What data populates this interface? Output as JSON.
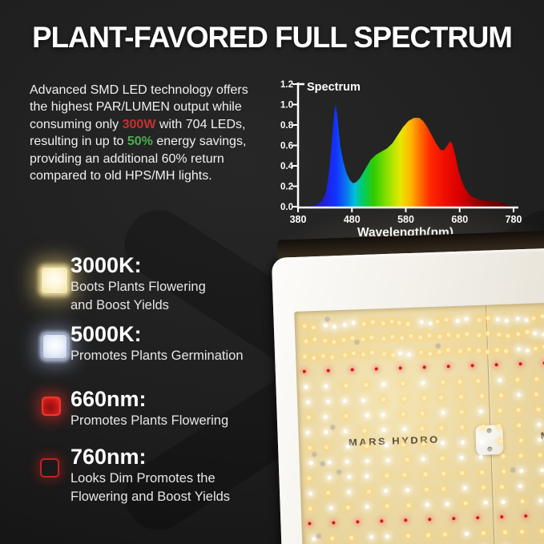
{
  "title": "PLANT-FAVORED FULL SPECTRUM",
  "description": {
    "lines": [
      {
        "pre": "Advanced SMD LED technology offers",
        "hl": "",
        "post": ""
      },
      {
        "pre": "the highest PAR/LUMEN output while",
        "hl": "",
        "post": ""
      },
      {
        "pre": "consuming only ",
        "hl": "300W",
        "post": " with 704 LEDs,"
      },
      {
        "pre": "resulting in up to ",
        "hl": "50%",
        "post": " energy savings,"
      },
      {
        "pre": "providing an additional 60% return",
        "hl": "",
        "post": ""
      },
      {
        "pre": "compared to old HPS/MH lights.",
        "hl": "",
        "post": ""
      }
    ],
    "accent_red": "#c93030",
    "accent_green": "#4caf50"
  },
  "chart_data": {
    "type": "area",
    "title": "Spectrum",
    "xlabel": "Wavelength(nm)",
    "ylabel": "",
    "xlim": [
      380,
      780
    ],
    "ylim": [
      0,
      1.2
    ],
    "x_tick_labels": [
      "380",
      "480",
      "580",
      "680",
      "780"
    ],
    "y_tick_labels": [
      "0.0",
      "0.2",
      "0.4",
      "0.6",
      "0.8",
      "1.0",
      "1.2"
    ],
    "grid": false,
    "points": [
      [
        380,
        0
      ],
      [
        395,
        0
      ],
      [
        405,
        0.01
      ],
      [
        415,
        0.02
      ],
      [
        425,
        0.06
      ],
      [
        432,
        0.15
      ],
      [
        438,
        0.36
      ],
      [
        443,
        0.66
      ],
      [
        447,
        0.92
      ],
      [
        450,
        1.0
      ],
      [
        453,
        0.88
      ],
      [
        458,
        0.6
      ],
      [
        464,
        0.44
      ],
      [
        470,
        0.33
      ],
      [
        476,
        0.26
      ],
      [
        482,
        0.23
      ],
      [
        488,
        0.24
      ],
      [
        495,
        0.28
      ],
      [
        505,
        0.37
      ],
      [
        515,
        0.46
      ],
      [
        525,
        0.51
      ],
      [
        535,
        0.54
      ],
      [
        545,
        0.57
      ],
      [
        555,
        0.62
      ],
      [
        565,
        0.7
      ],
      [
        575,
        0.78
      ],
      [
        585,
        0.84
      ],
      [
        595,
        0.87
      ],
      [
        605,
        0.87
      ],
      [
        612,
        0.84
      ],
      [
        620,
        0.78
      ],
      [
        628,
        0.7
      ],
      [
        636,
        0.62
      ],
      [
        644,
        0.56
      ],
      [
        650,
        0.55
      ],
      [
        656,
        0.59
      ],
      [
        662,
        0.64
      ],
      [
        666,
        0.62
      ],
      [
        672,
        0.5
      ],
      [
        678,
        0.35
      ],
      [
        684,
        0.25
      ],
      [
        690,
        0.18
      ],
      [
        698,
        0.12
      ],
      [
        706,
        0.09
      ],
      [
        715,
        0.07
      ],
      [
        725,
        0.06
      ],
      [
        740,
        0.055
      ],
      [
        752,
        0.05
      ],
      [
        760,
        0.04
      ],
      [
        768,
        0.02
      ],
      [
        775,
        0.005
      ],
      [
        780,
        0
      ]
    ],
    "gradient": [
      [
        380,
        "#28087a"
      ],
      [
        430,
        "#2020dd"
      ],
      [
        450,
        "#1133ff"
      ],
      [
        470,
        "#0977ee"
      ],
      [
        485,
        "#00c0d8"
      ],
      [
        500,
        "#00cc66"
      ],
      [
        520,
        "#2ecc00"
      ],
      [
        545,
        "#8ae000"
      ],
      [
        570,
        "#e8e800"
      ],
      [
        590,
        "#ffb300"
      ],
      [
        605,
        "#ff7300"
      ],
      [
        625,
        "#ff2a00"
      ],
      [
        650,
        "#f01000"
      ],
      [
        680,
        "#d80000"
      ],
      [
        720,
        "#8c0000"
      ],
      [
        780,
        "#480000"
      ]
    ]
  },
  "features": [
    {
      "led": "warm-white-led",
      "heading": "3000K:",
      "lines": [
        "Boots Plants Flowering",
        "and Boost Yields"
      ],
      "led_color": "#fdf6d8"
    },
    {
      "led": "cool-white-led",
      "heading": "5000K:",
      "lines": [
        "Promotes Plants Germination",
        ""
      ],
      "led_color": "#eef2fb"
    },
    {
      "led": "red-660-led",
      "heading": "660nm:",
      "lines": [
        "Promotes Plants Flowering",
        ""
      ],
      "led_color": "#e02424"
    },
    {
      "led": "red-760-led",
      "heading": "760nm:",
      "lines": [
        "Looks Dim Promotes the",
        "Flowering and Boost Yields"
      ],
      "led_color": "#a81a16"
    }
  ],
  "panel": {
    "brand": "MARS HYDRO",
    "board_color": "#ead7a2",
    "frame_color": "#f3f0e9",
    "led_grid": {
      "rows": 16,
      "cols": 13,
      "row_gap": 19,
      "col_gap": 24,
      "red_rows": [
        3,
        13
      ],
      "red_col_gap": 30
    },
    "led_colors": {
      "warm": "#ffeebc",
      "white": "#ffffff",
      "red": "#cd1d1d"
    }
  }
}
